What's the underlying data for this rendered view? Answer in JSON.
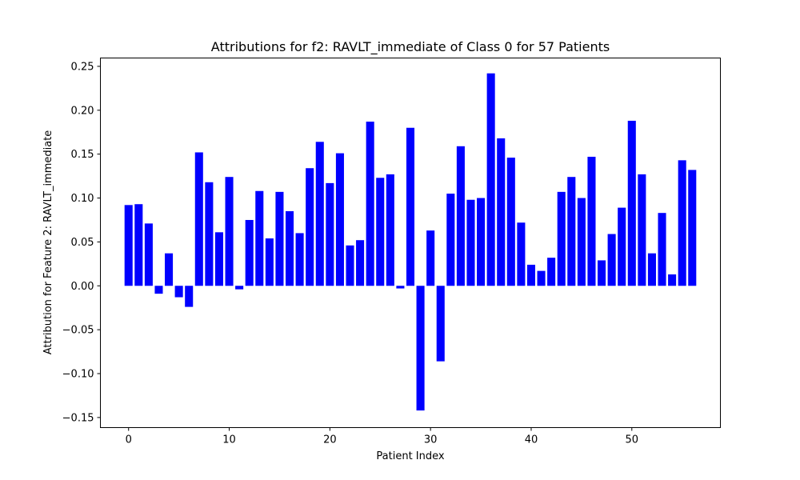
{
  "chart_data": {
    "type": "bar",
    "title": "Attributions for f2: RAVLT_immediate of Class 0 for 57 Patients",
    "xlabel": "Patient Index",
    "ylabel": "Attribution for Feature 2: RAVLT_immediate",
    "bar_color": "#0000ff",
    "grid": false,
    "xlim": [
      -2.8,
      58.8
    ],
    "ylim": [
      -0.1615,
      0.2595
    ],
    "xticks": [
      0,
      10,
      20,
      30,
      40,
      50
    ],
    "xtick_labels": [
      "0",
      "10",
      "20",
      "30",
      "40",
      "50"
    ],
    "yticks": [
      -0.15,
      -0.1,
      -0.05,
      0.0,
      0.05,
      0.1,
      0.15,
      0.2,
      0.25
    ],
    "ytick_labels": [
      "−0.15",
      "−0.10",
      "−0.05",
      "0.00",
      "0.05",
      "0.10",
      "0.15",
      "0.20",
      "0.25"
    ],
    "x": [
      0,
      1,
      2,
      3,
      4,
      5,
      6,
      7,
      8,
      9,
      10,
      11,
      12,
      13,
      14,
      15,
      16,
      17,
      18,
      19,
      20,
      21,
      22,
      23,
      24,
      25,
      26,
      27,
      28,
      29,
      30,
      31,
      32,
      33,
      34,
      35,
      36,
      37,
      38,
      39,
      40,
      41,
      42,
      43,
      44,
      45,
      46,
      47,
      48,
      49,
      50,
      51,
      52,
      53,
      54,
      55,
      56
    ],
    "values": [
      0.092,
      0.093,
      0.071,
      -0.009,
      0.037,
      -0.013,
      -0.024,
      0.152,
      0.118,
      0.061,
      0.124,
      -0.004,
      0.075,
      0.108,
      0.054,
      0.107,
      0.085,
      0.06,
      0.134,
      0.164,
      0.117,
      0.151,
      0.046,
      0.052,
      0.187,
      0.123,
      0.127,
      -0.003,
      0.18,
      -0.142,
      0.063,
      -0.086,
      0.105,
      0.159,
      0.098,
      0.1,
      0.242,
      0.168,
      0.146,
      0.072,
      0.024,
      0.017,
      0.032,
      0.107,
      0.124,
      0.1,
      0.147,
      0.029,
      0.059,
      0.089,
      0.188,
      0.127,
      0.037,
      0.083,
      0.013,
      0.143,
      0.132
    ]
  }
}
